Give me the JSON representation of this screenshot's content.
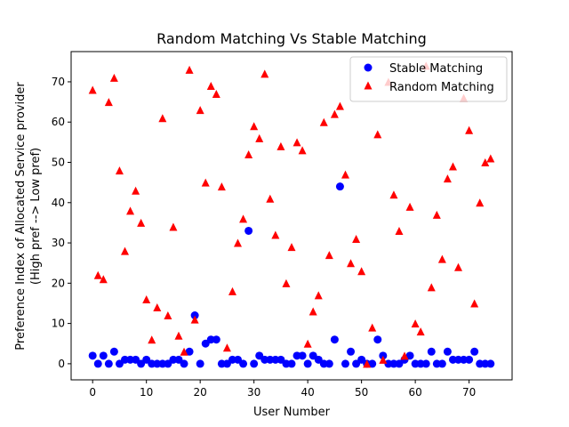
{
  "chart_data": {
    "type": "scatter",
    "title": "Random Matching Vs Stable Matching",
    "xlabel": "User Number",
    "ylabel_line1": "Preference Index of Allocated Service provider",
    "ylabel_line2": "(High pref --> Low pref)",
    "xlim": [
      -4,
      78
    ],
    "ylim": [
      -4,
      77.5
    ],
    "xticks": [
      0,
      10,
      20,
      30,
      40,
      50,
      60,
      70
    ],
    "yticks": [
      0,
      10,
      20,
      30,
      40,
      50,
      60,
      70
    ],
    "grid": false,
    "legend_position": "top-right",
    "series": [
      {
        "name": "Stable Matching",
        "color": "#0000ff",
        "marker": "circle",
        "x": [
          0,
          1,
          2,
          3,
          4,
          5,
          6,
          7,
          8,
          9,
          10,
          11,
          12,
          13,
          14,
          15,
          16,
          17,
          18,
          19,
          20,
          21,
          22,
          23,
          24,
          25,
          26,
          27,
          28,
          29,
          30,
          31,
          32,
          33,
          34,
          35,
          36,
          37,
          38,
          39,
          40,
          41,
          42,
          43,
          44,
          45,
          46,
          47,
          48,
          49,
          50,
          51,
          52,
          53,
          54,
          55,
          56,
          57,
          58,
          59,
          60,
          61,
          62,
          63,
          64,
          65,
          66,
          67,
          68,
          69,
          70,
          71,
          72,
          73,
          74
        ],
        "y": [
          2,
          0,
          2,
          0,
          3,
          0,
          1,
          1,
          1,
          0,
          1,
          0,
          0,
          0,
          0,
          1,
          1,
          0,
          3,
          12,
          0,
          5,
          6,
          6,
          0,
          0,
          1,
          1,
          0,
          33,
          0,
          2,
          1,
          1,
          1,
          1,
          0,
          0,
          2,
          2,
          0,
          2,
          1,
          0,
          0,
          6,
          44,
          0,
          3,
          0,
          1,
          0,
          0,
          6,
          2,
          0,
          0,
          0,
          1,
          2,
          0,
          0,
          0,
          3,
          0,
          0,
          3,
          1,
          1,
          1,
          1,
          3,
          0,
          0,
          0
        ]
      },
      {
        "name": "Random Matching",
        "color": "#ff0000",
        "marker": "triangle",
        "x": [
          0,
          1,
          2,
          3,
          4,
          5,
          6,
          7,
          8,
          9,
          10,
          11,
          12,
          13,
          14,
          15,
          16,
          17,
          18,
          19,
          20,
          21,
          22,
          23,
          24,
          25,
          26,
          27,
          28,
          29,
          30,
          31,
          32,
          33,
          34,
          35,
          36,
          37,
          38,
          39,
          40,
          41,
          42,
          43,
          44,
          45,
          46,
          47,
          48,
          49,
          50,
          51,
          52,
          53,
          54,
          55,
          56,
          57,
          58,
          59,
          60,
          61,
          62,
          63,
          64,
          65,
          66,
          67,
          68,
          69,
          70,
          71,
          72,
          73,
          74
        ],
        "y": [
          68,
          22,
          21,
          65,
          71,
          48,
          28,
          38,
          43,
          35,
          16,
          6,
          14,
          61,
          12,
          34,
          7,
          3,
          73,
          11,
          63,
          45,
          69,
          67,
          44,
          4,
          18,
          30,
          36,
          52,
          59,
          56,
          72,
          41,
          32,
          54,
          20,
          29,
          55,
          53,
          5,
          13,
          17,
          60,
          27,
          62,
          64,
          47,
          25,
          31,
          23,
          0,
          9,
          57,
          1,
          70,
          42,
          33,
          2,
          39,
          10,
          8,
          74,
          19,
          37,
          26,
          46,
          49,
          24,
          66,
          58,
          15,
          40,
          50,
          51
        ]
      }
    ]
  }
}
